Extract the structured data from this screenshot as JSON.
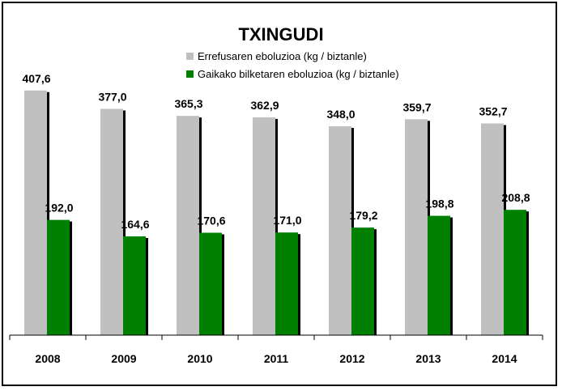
{
  "chart_data": {
    "type": "bar",
    "title": "TXINGUDI",
    "categories": [
      "2008",
      "2009",
      "2010",
      "2011",
      "2012",
      "2013",
      "2014"
    ],
    "series": [
      {
        "name": "Errefusaren eboluzioa (kg / biztanle)",
        "color": "#c0c0c0",
        "values": [
          407.6,
          377.0,
          365.3,
          362.9,
          348.0,
          359.7,
          352.7
        ],
        "labels": [
          "407,6",
          "377,0",
          "365,3",
          "362,9",
          "348,0",
          "359,7",
          "352,7"
        ]
      },
      {
        "name": "Gaikako bilketaren eboluzioa (kg / biztanle)",
        "color": "#008000",
        "values": [
          192.0,
          164.6,
          170.6,
          171.0,
          179.2,
          198.8,
          208.8
        ],
        "labels": [
          "192,0",
          "164,6",
          "170,6",
          "171,0",
          "179,2",
          "198,8",
          "208,8"
        ]
      }
    ],
    "ylim": [
      0,
      410
    ],
    "grid": false,
    "legend_position": "top"
  }
}
